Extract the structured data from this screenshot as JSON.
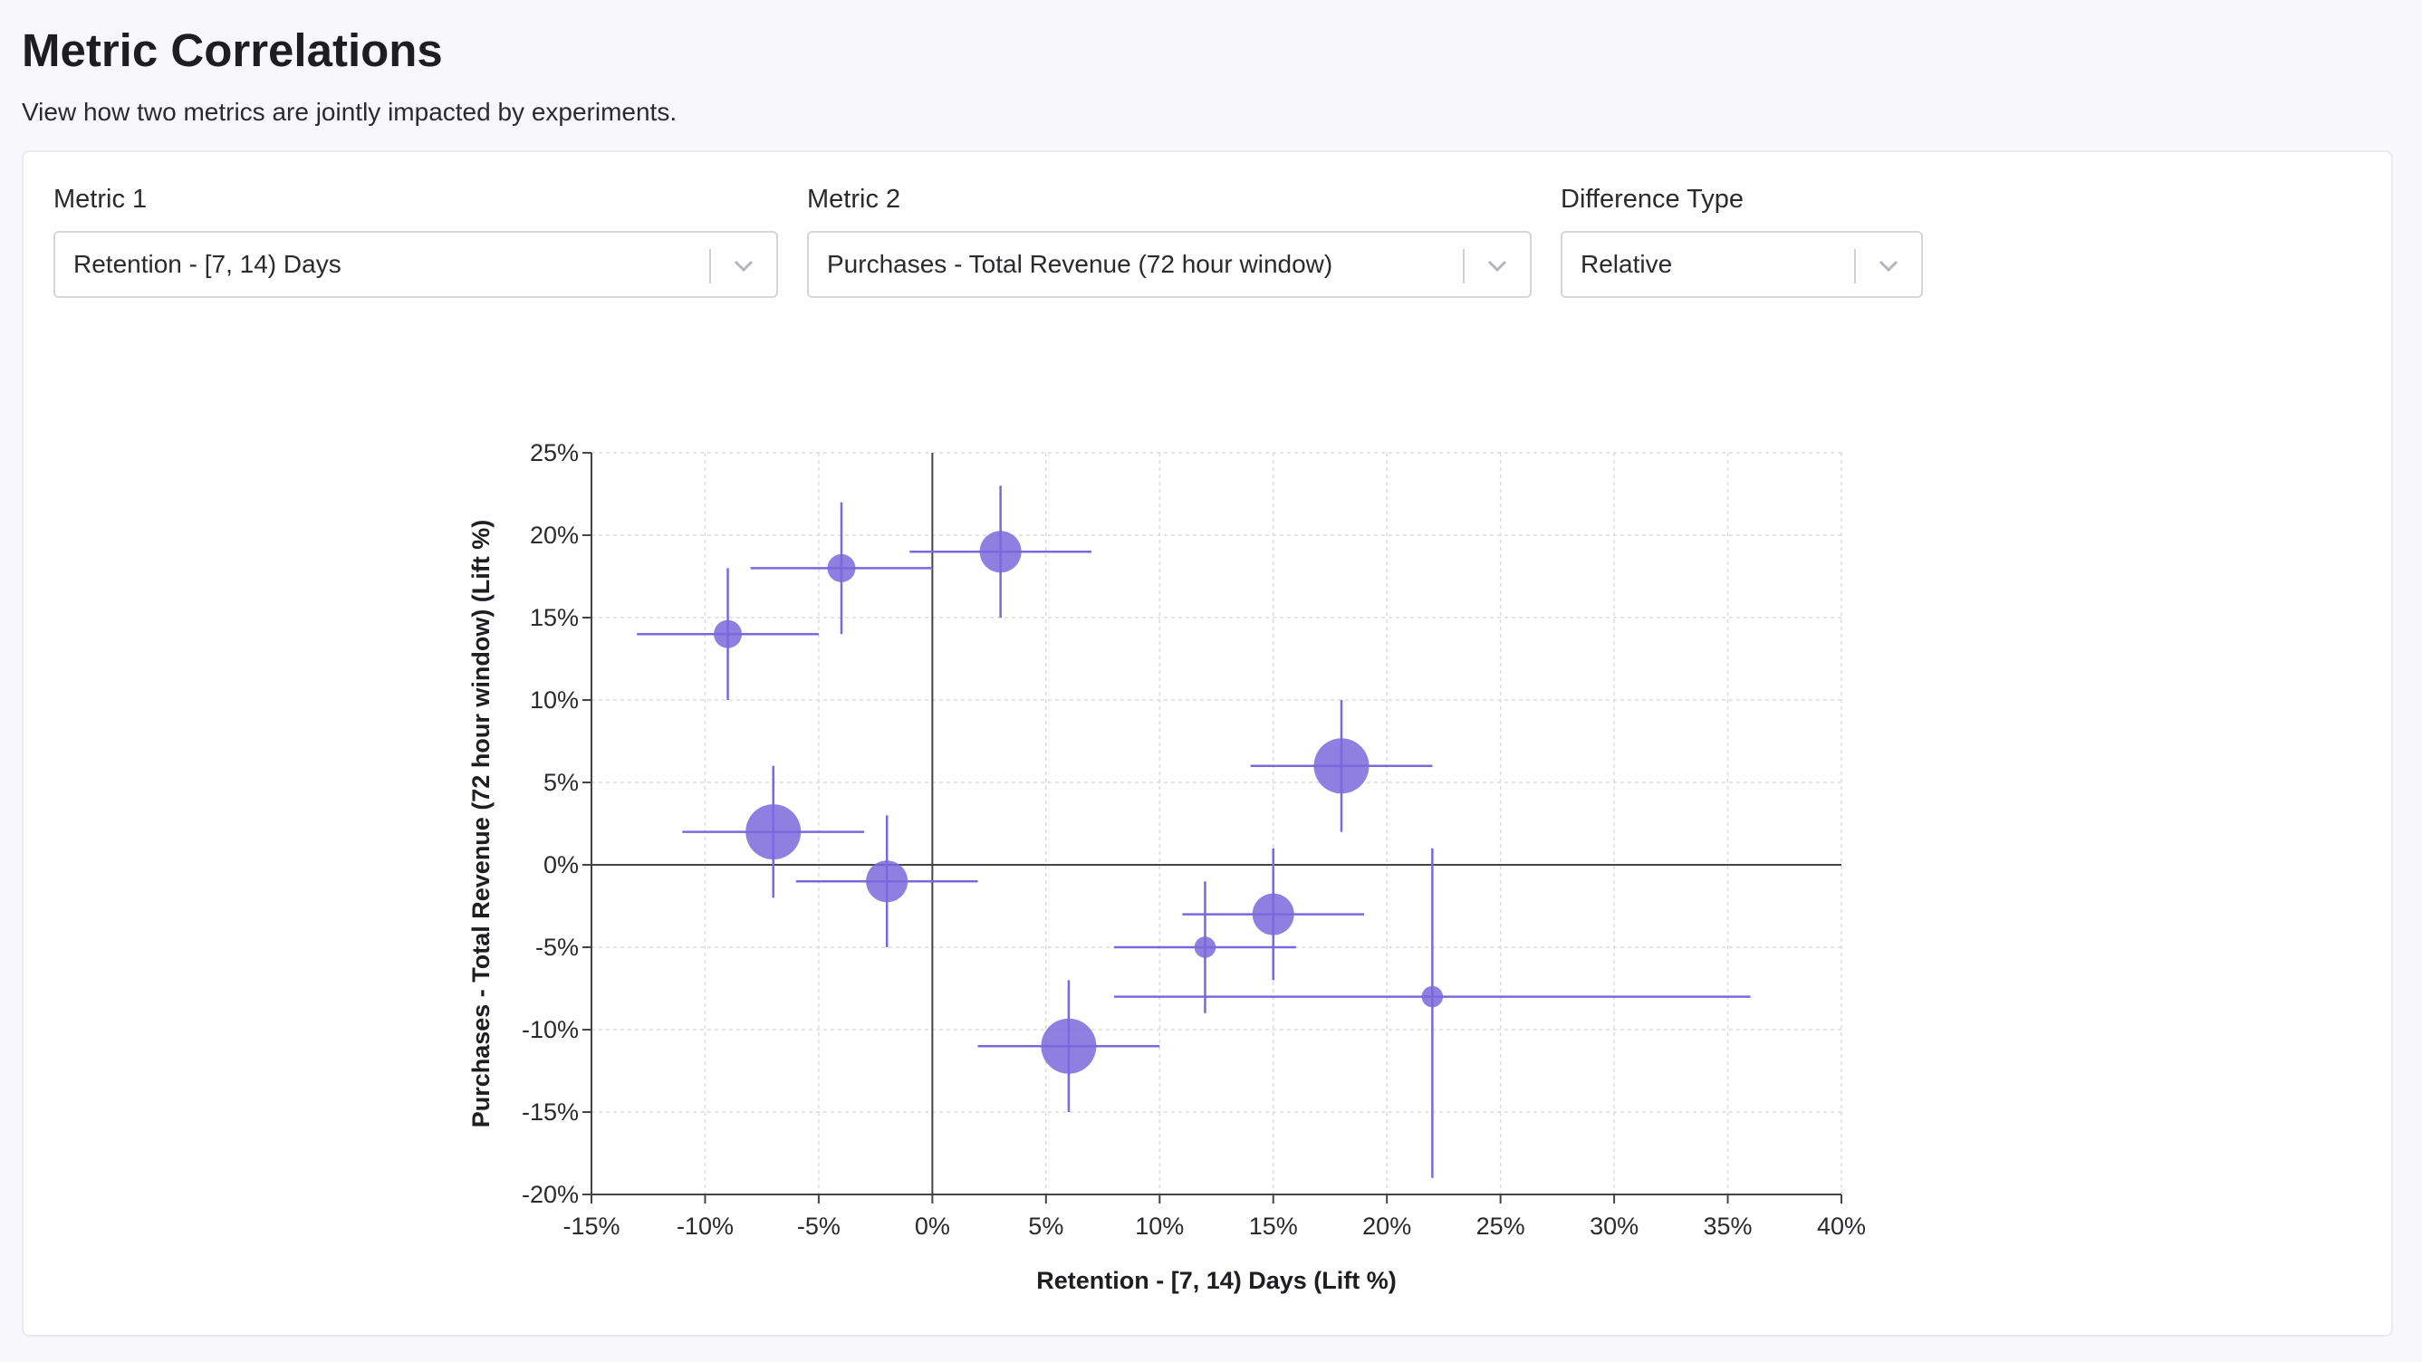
{
  "header": {
    "title": "Metric Correlations",
    "subtitle": "View how two metrics are jointly impacted by experiments."
  },
  "filters": {
    "metric1": {
      "label": "Metric 1",
      "value": "Retention - [7, 14) Days"
    },
    "metric2": {
      "label": "Metric 2",
      "value": "Purchases - Total Revenue (72 hour window)"
    },
    "difference_type": {
      "label": "Difference Type",
      "value": "Relative"
    }
  },
  "colors": {
    "point": "#7b68dc",
    "whisker": "#7b68dc",
    "axis": "#444444",
    "grid": "#dcdcdc"
  },
  "chart_data": {
    "type": "scatter",
    "xlabel": "Retention - [7, 14) Days (Lift %)",
    "ylabel": "Purchases - Total Revenue (72 hour window) (Lift %)",
    "xlim": [
      -15,
      40
    ],
    "ylim": [
      -20,
      25
    ],
    "x_ticks": [
      -15,
      -10,
      -5,
      0,
      5,
      10,
      15,
      20,
      25,
      30,
      35,
      40
    ],
    "y_ticks": [
      -20,
      -15,
      -10,
      -5,
      0,
      5,
      10,
      15,
      20,
      25
    ],
    "x_tick_labels": [
      "-15%",
      "-10%",
      "-5%",
      "0%",
      "5%",
      "10%",
      "15%",
      "20%",
      "25%",
      "30%",
      "35%",
      "40%"
    ],
    "y_tick_labels": [
      "-20%",
      "-15%",
      "-10%",
      "-5%",
      "0%",
      "5%",
      "10%",
      "15%",
      "20%",
      "25%"
    ],
    "grid": true,
    "points": [
      {
        "x": -9,
        "y": 14,
        "x_ci": [
          -13,
          -5
        ],
        "y_ci": [
          10,
          18
        ],
        "size": 1
      },
      {
        "x": -4,
        "y": 18,
        "x_ci": [
          -8,
          0
        ],
        "y_ci": [
          14,
          22
        ],
        "size": 1
      },
      {
        "x": 3,
        "y": 19,
        "x_ci": [
          -1,
          7
        ],
        "y_ci": [
          15,
          23
        ],
        "size": 2
      },
      {
        "x": 18,
        "y": 6,
        "x_ci": [
          14,
          22
        ],
        "y_ci": [
          2,
          10
        ],
        "size": 3
      },
      {
        "x": -7,
        "y": 2,
        "x_ci": [
          -11,
          -3
        ],
        "y_ci": [
          -2,
          6
        ],
        "size": 3
      },
      {
        "x": -2,
        "y": -1,
        "x_ci": [
          -6,
          2
        ],
        "y_ci": [
          -5,
          3
        ],
        "size": 2
      },
      {
        "x": 15,
        "y": -3,
        "x_ci": [
          11,
          19
        ],
        "y_ci": [
          -7,
          1
        ],
        "size": 2
      },
      {
        "x": 12,
        "y": -5,
        "x_ci": [
          8,
          16
        ],
        "y_ci": [
          -9,
          -1
        ],
        "size": 0.5
      },
      {
        "x": 22,
        "y": -8,
        "x_ci": [
          8,
          36
        ],
        "y_ci": [
          -19,
          1
        ],
        "size": 0.5
      },
      {
        "x": 6,
        "y": -11,
        "x_ci": [
          2,
          10
        ],
        "y_ci": [
          -15,
          -7
        ],
        "size": 3
      }
    ]
  }
}
